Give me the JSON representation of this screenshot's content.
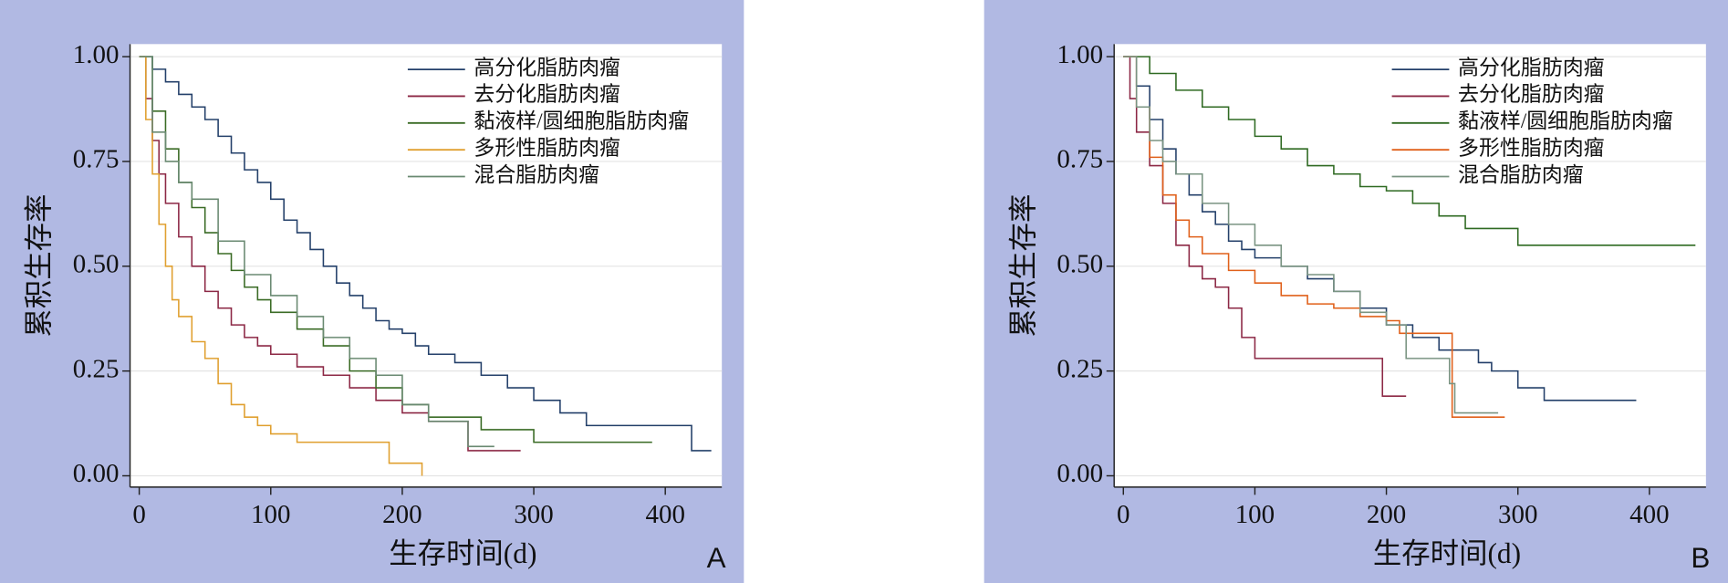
{
  "chart_data": [
    {
      "type": "line",
      "step": true,
      "panel_label": "A",
      "x_label": "生存时间(d)",
      "y_label": "累积生存率",
      "xlim": [
        -7,
        443
      ],
      "ylim": [
        -0.027,
        1.03
      ],
      "xticks": [
        0,
        100,
        200,
        300,
        400
      ],
      "yticks": [
        {
          "value": 0,
          "label": "0.00"
        },
        {
          "value": 0.25,
          "label": "0.25"
        },
        {
          "value": 0.5,
          "label": "0.50"
        },
        {
          "value": 0.75,
          "label": "0.75"
        },
        {
          "value": 1,
          "label": "1.00"
        }
      ],
      "grid": true,
      "series": [
        {
          "name": "高分化脂肪肉瘤",
          "color": "#24406a",
          "x": [
            0,
            10,
            20,
            30,
            40,
            50,
            60,
            70,
            80,
            90,
            100,
            110,
            120,
            130,
            140,
            150,
            160,
            170,
            180,
            190,
            200,
            210,
            220,
            240,
            260,
            280,
            300,
            320,
            340,
            380,
            420,
            435
          ],
          "values": [
            1,
            0.97,
            0.94,
            0.91,
            0.88,
            0.85,
            0.81,
            0.77,
            0.73,
            0.7,
            0.66,
            0.61,
            0.58,
            0.54,
            0.5,
            0.46,
            0.43,
            0.4,
            0.37,
            0.35,
            0.34,
            0.31,
            0.29,
            0.27,
            0.24,
            0.21,
            0.18,
            0.15,
            0.12,
            0.12,
            0.06,
            0.06
          ]
        },
        {
          "name": "去分化脂肪肉瘤",
          "color": "#8c2845",
          "x": [
            0,
            5,
            10,
            15,
            20,
            30,
            40,
            50,
            60,
            70,
            80,
            90,
            100,
            120,
            140,
            160,
            180,
            200,
            220,
            250,
            290
          ],
          "values": [
            1,
            0.9,
            0.8,
            0.72,
            0.65,
            0.57,
            0.5,
            0.44,
            0.4,
            0.36,
            0.33,
            0.31,
            0.29,
            0.26,
            0.24,
            0.21,
            0.18,
            0.15,
            0.13,
            0.06,
            0.06
          ]
        },
        {
          "name": "黏液样/圆细胞脂肪肉瘤",
          "color": "#3a6b25",
          "x": [
            0,
            10,
            20,
            30,
            40,
            50,
            60,
            70,
            80,
            90,
            100,
            120,
            140,
            160,
            180,
            200,
            220,
            260,
            300,
            390
          ],
          "values": [
            1,
            0.87,
            0.78,
            0.7,
            0.64,
            0.58,
            0.53,
            0.49,
            0.45,
            0.42,
            0.39,
            0.35,
            0.31,
            0.25,
            0.21,
            0.17,
            0.14,
            0.11,
            0.08,
            0.08
          ]
        },
        {
          "name": "多形性脂肪肉瘤",
          "color": "#e0a030",
          "x": [
            0,
            5,
            10,
            15,
            20,
            25,
            30,
            40,
            50,
            60,
            70,
            80,
            90,
            100,
            120,
            160,
            190,
            215
          ],
          "values": [
            1,
            0.85,
            0.72,
            0.6,
            0.5,
            0.42,
            0.38,
            0.32,
            0.28,
            0.22,
            0.17,
            0.14,
            0.12,
            0.1,
            0.08,
            0.08,
            0.03,
            0
          ]
        },
        {
          "name": "混合脂肪肉瘤",
          "color": "#6a8a72",
          "x": [
            0,
            10,
            20,
            30,
            40,
            60,
            80,
            100,
            120,
            140,
            160,
            180,
            200,
            220,
            250,
            270
          ],
          "values": [
            1,
            0.82,
            0.75,
            0.7,
            0.66,
            0.56,
            0.48,
            0.43,
            0.38,
            0.33,
            0.28,
            0.24,
            0.17,
            0.13,
            0.07,
            0.07
          ]
        }
      ]
    },
    {
      "type": "line",
      "step": true,
      "panel_label": "B",
      "x_label": "生存时间(d)",
      "y_label": "累积生存率",
      "xlim": [
        -7,
        443
      ],
      "ylim": [
        -0.027,
        1.03
      ],
      "xticks": [
        0,
        100,
        200,
        300,
        400
      ],
      "yticks": [
        {
          "value": 0,
          "label": "0.00"
        },
        {
          "value": 0.25,
          "label": "0.25"
        },
        {
          "value": 0.5,
          "label": "0.50"
        },
        {
          "value": 0.75,
          "label": "0.75"
        },
        {
          "value": 1,
          "label": "1.00"
        }
      ],
      "grid": true,
      "series": [
        {
          "name": "高分化脂肪肉瘤",
          "color": "#24406a",
          "x": [
            0,
            10,
            20,
            30,
            40,
            50,
            60,
            70,
            80,
            90,
            100,
            120,
            140,
            160,
            180,
            200,
            220,
            240,
            270,
            280,
            300,
            320,
            390
          ],
          "values": [
            1,
            0.93,
            0.85,
            0.78,
            0.72,
            0.67,
            0.63,
            0.6,
            0.56,
            0.54,
            0.52,
            0.5,
            0.47,
            0.44,
            0.4,
            0.36,
            0.33,
            0.3,
            0.27,
            0.25,
            0.21,
            0.18,
            0.18
          ]
        },
        {
          "name": "去分化脂肪肉瘤",
          "color": "#8c2845",
          "x": [
            0,
            5,
            10,
            20,
            30,
            40,
            50,
            60,
            70,
            80,
            90,
            100,
            150,
            195,
            197,
            215
          ],
          "values": [
            1,
            0.9,
            0.82,
            0.74,
            0.65,
            0.55,
            0.5,
            0.47,
            0.45,
            0.4,
            0.33,
            0.28,
            0.28,
            0.28,
            0.19,
            0.19
          ]
        },
        {
          "name": "黏液样/圆细胞脂肪肉瘤",
          "color": "#2f6a22",
          "x": [
            0,
            20,
            40,
            60,
            80,
            100,
            120,
            140,
            160,
            180,
            200,
            220,
            240,
            260,
            280,
            300,
            435
          ],
          "values": [
            1,
            0.96,
            0.92,
            0.88,
            0.85,
            0.81,
            0.78,
            0.74,
            0.72,
            0.69,
            0.68,
            0.65,
            0.62,
            0.59,
            0.59,
            0.55,
            0.55
          ]
        },
        {
          "name": "多形性脂肪肉瘤",
          "color": "#e0601a",
          "x": [
            0,
            10,
            20,
            30,
            40,
            50,
            60,
            80,
            100,
            120,
            140,
            160,
            180,
            200,
            210,
            250,
            290
          ],
          "values": [
            1,
            0.88,
            0.76,
            0.67,
            0.61,
            0.57,
            0.53,
            0.49,
            0.46,
            0.43,
            0.41,
            0.4,
            0.38,
            0.37,
            0.34,
            0.14,
            0.14
          ]
        },
        {
          "name": "混合脂肪肉瘤",
          "color": "#7a9482",
          "x": [
            0,
            10,
            20,
            30,
            40,
            60,
            80,
            100,
            120,
            140,
            160,
            180,
            200,
            215,
            235,
            248,
            252,
            285
          ],
          "values": [
            1,
            0.88,
            0.8,
            0.75,
            0.72,
            0.65,
            0.6,
            0.55,
            0.5,
            0.48,
            0.44,
            0.39,
            0.36,
            0.28,
            0.28,
            0.22,
            0.15,
            0.15
          ]
        }
      ]
    }
  ]
}
